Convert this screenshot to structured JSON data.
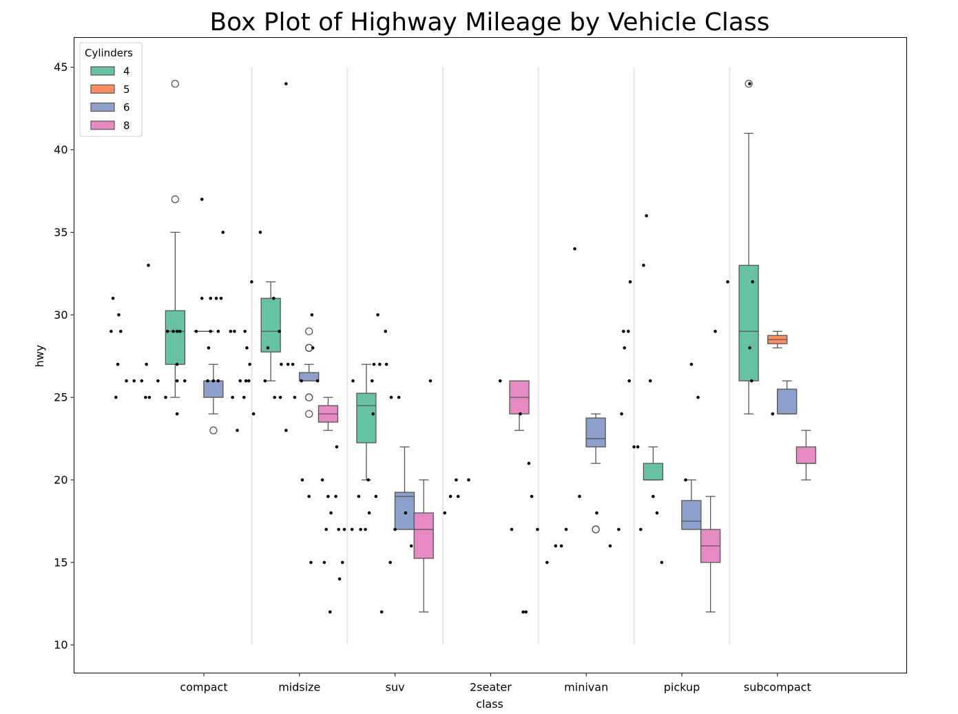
{
  "chart_data": {
    "type": "box",
    "title": "Box Plot of Highway Mileage by Vehicle Class",
    "xlabel": "class",
    "ylabel": "hwy",
    "categories": [
      "compact",
      "midsize",
      "suv",
      "2seater",
      "minivan",
      "pickup",
      "subcompact"
    ],
    "ylim": [
      8.3,
      46.8
    ],
    "yticks": [
      10,
      15,
      20,
      25,
      30,
      35,
      40,
      45
    ],
    "legend": {
      "title": "Cylinders",
      "position": "top-left",
      "entries": [
        {
          "label": "4",
          "color": "#66c2a5"
        },
        {
          "label": "5",
          "color": "#fc8d62"
        },
        {
          "label": "6",
          "color": "#8da0cb"
        },
        {
          "label": "8",
          "color": "#e78ac3"
        }
      ]
    },
    "series": [
      {
        "name": "4",
        "color": "#66c2a5",
        "boxes": [
          {
            "category": "compact",
            "whislo": 25,
            "q1": 27,
            "med": 29,
            "q3": 30.25,
            "whishi": 35,
            "fliers": [
              37,
              44
            ]
          },
          {
            "category": "midsize",
            "whislo": 26,
            "q1": 27.75,
            "med": 29,
            "q3": 31,
            "whishi": 32,
            "fliers": []
          },
          {
            "category": "suv",
            "whislo": 20,
            "q1": 22.25,
            "med": 24.5,
            "q3": 25.25,
            "whishi": 27,
            "fliers": []
          },
          {
            "category": "pickup",
            "whislo": 20,
            "q1": 20,
            "med": 20,
            "q3": 21,
            "whishi": 22,
            "fliers": []
          },
          {
            "category": "subcompact",
            "whislo": 24,
            "q1": 26,
            "med": 29,
            "q3": 33,
            "whishi": 41,
            "fliers": [
              44
            ]
          }
        ]
      },
      {
        "name": "5",
        "color": "#fc8d62",
        "boxes": [
          {
            "category": "compact",
            "whislo": 29,
            "q1": 29,
            "med": 29,
            "q3": 29,
            "whishi": 29,
            "fliers": []
          },
          {
            "category": "subcompact",
            "whislo": 28,
            "q1": 28.25,
            "med": 28.5,
            "q3": 28.75,
            "whishi": 29,
            "fliers": []
          }
        ]
      },
      {
        "name": "6",
        "color": "#8da0cb",
        "boxes": [
          {
            "category": "compact",
            "whislo": 24,
            "q1": 25,
            "med": 26,
            "q3": 26,
            "whishi": 27,
            "fliers": [
              23
            ]
          },
          {
            "category": "midsize",
            "whislo": 26,
            "q1": 26,
            "med": 26,
            "q3": 26.5,
            "whishi": 27,
            "fliers": [
              24,
              25,
              25,
              28,
              28,
              29
            ]
          },
          {
            "category": "suv",
            "whislo": 17,
            "q1": 17,
            "med": 19,
            "q3": 19.25,
            "whishi": 22,
            "fliers": []
          },
          {
            "category": "minivan",
            "whislo": 21,
            "q1": 22,
            "med": 22.5,
            "q3": 23.75,
            "whishi": 24,
            "fliers": [
              17,
              17
            ]
          },
          {
            "category": "pickup",
            "whislo": 17,
            "q1": 17,
            "med": 17.5,
            "q3": 18.75,
            "whishi": 20,
            "fliers": []
          },
          {
            "category": "subcompact",
            "whislo": 24,
            "q1": 24,
            "med": 24,
            "q3": 25.5,
            "whishi": 26,
            "fliers": []
          }
        ]
      },
      {
        "name": "8",
        "color": "#e78ac3",
        "boxes": [
          {
            "category": "midsize",
            "whislo": 23,
            "q1": 23.5,
            "med": 24,
            "q3": 24.5,
            "whishi": 25,
            "fliers": []
          },
          {
            "category": "suv",
            "whislo": 12,
            "q1": 15.25,
            "med": 17,
            "q3": 18,
            "whishi": 20,
            "fliers": []
          },
          {
            "category": "2seater",
            "whislo": 23,
            "q1": 24,
            "med": 25,
            "q3": 26,
            "whishi": 26,
            "fliers": []
          },
          {
            "category": "pickup",
            "whislo": 12,
            "q1": 15,
            "med": 16,
            "q3": 17,
            "whishi": 19,
            "fliers": []
          },
          {
            "category": "subcompact",
            "whislo": 20,
            "q1": 21,
            "med": 21,
            "q3": 22,
            "whishi": 23,
            "fliers": []
          }
        ]
      }
    ],
    "strip_points": [
      {
        "x": -0.97,
        "y": 29
      },
      {
        "x": -0.95,
        "y": 31
      },
      {
        "x": -0.92,
        "y": 25
      },
      {
        "x": -0.9,
        "y": 27
      },
      {
        "x": -0.89,
        "y": 30
      },
      {
        "x": -0.87,
        "y": 29
      },
      {
        "x": -0.81,
        "y": 26
      },
      {
        "x": -0.73,
        "y": 26
      },
      {
        "x": -0.65,
        "y": 26
      },
      {
        "x": -0.61,
        "y": 25
      },
      {
        "x": -0.6,
        "y": 27
      },
      {
        "x": -0.57,
        "y": 25
      },
      {
        "x": -0.58,
        "y": 33
      },
      {
        "x": -0.48,
        "y": 26
      },
      {
        "x": -0.4,
        "y": 25
      },
      {
        "x": -0.38,
        "y": 29
      },
      {
        "x": -0.32,
        "y": 29
      },
      {
        "x": -0.28,
        "y": 24
      },
      {
        "x": -0.28,
        "y": 26
      },
      {
        "x": -0.28,
        "y": 27
      },
      {
        "x": -0.28,
        "y": 29
      },
      {
        "x": -0.25,
        "y": 29
      },
      {
        "x": -0.2,
        "y": 26
      },
      {
        "x": -0.08,
        "y": 29
      },
      {
        "x": -0.02,
        "y": 31
      },
      {
        "x": -0.02,
        "y": 37
      },
      {
        "x": 0.04,
        "y": 26
      },
      {
        "x": 0.05,
        "y": 28
      },
      {
        "x": 0.07,
        "y": 29
      },
      {
        "x": 0.07,
        "y": 31
      },
      {
        "x": 0.1,
        "y": 26
      },
      {
        "x": 0.13,
        "y": 31
      },
      {
        "x": 0.15,
        "y": 29
      },
      {
        "x": 0.15,
        "y": 26
      },
      {
        "x": 0.18,
        "y": 31
      },
      {
        "x": 0.2,
        "y": 35
      },
      {
        "x": 0.28,
        "y": 29
      },
      {
        "x": 0.3,
        "y": 25
      },
      {
        "x": 0.32,
        "y": 29
      },
      {
        "x": 0.35,
        "y": 23
      },
      {
        "x": 0.38,
        "y": 26
      },
      {
        "x": 0.42,
        "y": 25
      },
      {
        "x": 0.43,
        "y": 29
      },
      {
        "x": 0.44,
        "y": 26
      },
      {
        "x": 0.45,
        "y": 28
      },
      {
        "x": 0.47,
        "y": 26
      },
      {
        "x": 0.48,
        "y": 27
      },
      {
        "x": 0.5,
        "y": 32
      },
      {
        "x": 0.52,
        "y": 24
      },
      {
        "x": 0.59,
        "y": 35
      },
      {
        "x": 0.64,
        "y": 26
      },
      {
        "x": 0.67,
        "y": 28
      },
      {
        "x": 0.73,
        "y": 31
      },
      {
        "x": 0.74,
        "y": 25
      },
      {
        "x": 0.79,
        "y": 29
      },
      {
        "x": 0.8,
        "y": 25
      },
      {
        "x": 0.81,
        "y": 27
      },
      {
        "x": 0.86,
        "y": 23
      },
      {
        "x": 0.86,
        "y": 44
      },
      {
        "x": 0.88,
        "y": 27
      },
      {
        "x": 0.93,
        "y": 27
      },
      {
        "x": 0.95,
        "y": 25
      },
      {
        "x": 1.02,
        "y": 26
      },
      {
        "x": 1.03,
        "y": 20
      },
      {
        "x": 1.1,
        "y": 19
      },
      {
        "x": 1.12,
        "y": 15
      },
      {
        "x": 1.13,
        "y": 30
      },
      {
        "x": 1.14,
        "y": 28
      },
      {
        "x": 1.19,
        "y": 26
      },
      {
        "x": 1.24,
        "y": 20
      },
      {
        "x": 1.26,
        "y": 15
      },
      {
        "x": 1.28,
        "y": 17
      },
      {
        "x": 1.3,
        "y": 19
      },
      {
        "x": 1.32,
        "y": 12
      },
      {
        "x": 1.33,
        "y": 18
      },
      {
        "x": 1.38,
        "y": 19
      },
      {
        "x": 1.39,
        "y": 22
      },
      {
        "x": 1.41,
        "y": 17
      },
      {
        "x": 1.42,
        "y": 14
      },
      {
        "x": 1.45,
        "y": 15
      },
      {
        "x": 1.47,
        "y": 17
      },
      {
        "x": 1.55,
        "y": 17
      },
      {
        "x": 1.56,
        "y": 26
      },
      {
        "x": 1.62,
        "y": 19
      },
      {
        "x": 1.64,
        "y": 17
      },
      {
        "x": 1.69,
        "y": 17
      },
      {
        "x": 1.72,
        "y": 20
      },
      {
        "x": 1.73,
        "y": 18
      },
      {
        "x": 1.76,
        "y": 26
      },
      {
        "x": 1.77,
        "y": 24
      },
      {
        "x": 1.78,
        "y": 27
      },
      {
        "x": 1.8,
        "y": 19
      },
      {
        "x": 1.82,
        "y": 30
      },
      {
        "x": 1.84,
        "y": 27
      },
      {
        "x": 1.86,
        "y": 12
      },
      {
        "x": 1.9,
        "y": 29
      },
      {
        "x": 1.91,
        "y": 27
      },
      {
        "x": 1.96,
        "y": 25
      },
      {
        "x": 1.95,
        "y": 15
      },
      {
        "x": 2.0,
        "y": 17
      },
      {
        "x": 2.04,
        "y": 25
      },
      {
        "x": 2.11,
        "y": 18
      },
      {
        "x": 2.17,
        "y": 16
      },
      {
        "x": 2.37,
        "y": 26
      },
      {
        "x": 2.52,
        "y": 18
      },
      {
        "x": 2.58,
        "y": 19
      },
      {
        "x": 2.64,
        "y": 20
      },
      {
        "x": 2.66,
        "y": 19
      },
      {
        "x": 2.77,
        "y": 20
      },
      {
        "x": 3.1,
        "y": 26
      },
      {
        "x": 3.22,
        "y": 17
      },
      {
        "x": 3.31,
        "y": 24
      },
      {
        "x": 3.34,
        "y": 12
      },
      {
        "x": 3.37,
        "y": 12
      },
      {
        "x": 3.4,
        "y": 21
      },
      {
        "x": 3.43,
        "y": 19
      },
      {
        "x": 3.49,
        "y": 17
      },
      {
        "x": 3.59,
        "y": 15
      },
      {
        "x": 3.68,
        "y": 16
      },
      {
        "x": 3.74,
        "y": 16
      },
      {
        "x": 3.79,
        "y": 17
      },
      {
        "x": 3.88,
        "y": 34
      },
      {
        "x": 3.93,
        "y": 19
      },
      {
        "x": 4.11,
        "y": 18
      },
      {
        "x": 4.25,
        "y": 16
      },
      {
        "x": 4.34,
        "y": 17
      },
      {
        "x": 4.37,
        "y": 24
      },
      {
        "x": 4.39,
        "y": 29
      },
      {
        "x": 4.4,
        "y": 28
      },
      {
        "x": 4.44,
        "y": 29
      },
      {
        "x": 4.45,
        "y": 26
      },
      {
        "x": 4.46,
        "y": 32
      },
      {
        "x": 4.5,
        "y": 22
      },
      {
        "x": 4.54,
        "y": 22
      },
      {
        "x": 4.57,
        "y": 17
      },
      {
        "x": 4.6,
        "y": 33
      },
      {
        "x": 4.63,
        "y": 36
      },
      {
        "x": 4.67,
        "y": 26
      },
      {
        "x": 4.7,
        "y": 19
      },
      {
        "x": 4.74,
        "y": 18
      },
      {
        "x": 4.79,
        "y": 15
      },
      {
        "x": 5.04,
        "y": 20
      },
      {
        "x": 5.1,
        "y": 27
      },
      {
        "x": 5.17,
        "y": 25
      },
      {
        "x": 5.35,
        "y": 29
      },
      {
        "x": 5.48,
        "y": 32
      },
      {
        "x": 5.71,
        "y": 44
      },
      {
        "x": 5.71,
        "y": 28
      },
      {
        "x": 5.73,
        "y": 26
      },
      {
        "x": 5.74,
        "y": 32
      },
      {
        "x": 5.95,
        "y": 24
      }
    ]
  }
}
